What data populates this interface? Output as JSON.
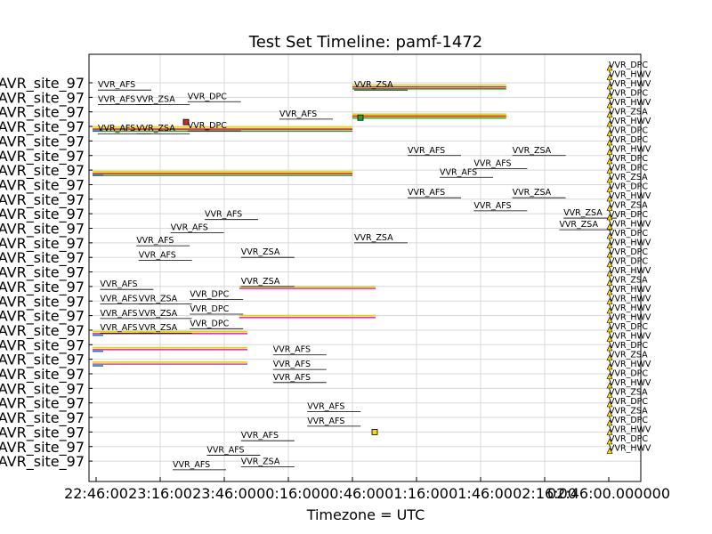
{
  "chart_data": {
    "type": "timeline",
    "title": "Test Set Timeline: pamf-1472",
    "xlabel": "Timezone = UTC",
    "x_tick_labels": [
      "22:46:00",
      "23:16:00",
      "23:46:00",
      "00:16:00",
      "00:46:00",
      "01:16:00",
      "01:46:00",
      "02:16:00",
      "02:46:00"
    ],
    "x_tick_label_suffix": ".000000",
    "y_tick_label": "AVR_site_97",
    "row_count": 27,
    "grid": true,
    "series_colors": {
      "red": "#d62728",
      "green": "#2ca02c",
      "yellow": "#e6d800",
      "magenta": "#d63ad6",
      "blue": "#1f77b4",
      "marker_yellow": "#ffd700"
    },
    "annotations": [
      {
        "text": "VVR_AFS",
        "x_min": 0,
        "y_row": 0.5
      },
      {
        "text": "VVR_ZSA",
        "x_min": 120,
        "y_row": 0.5
      },
      {
        "text": "VVR_AFS",
        "x_min": 0,
        "y_row": 1.5
      },
      {
        "text": "VVR_ZSA",
        "x_min": 18,
        "y_row": 1.5
      },
      {
        "text": "VVR_DPC",
        "x_min": 42,
        "y_row": 1.3
      },
      {
        "text": "VVR_AFS",
        "x_min": 85,
        "y_row": 2.5
      },
      {
        "text": "VVR_AFS",
        "x_min": 0,
        "y_row": 3.5
      },
      {
        "text": "VVR_ZSA",
        "x_min": 18,
        "y_row": 3.5
      },
      {
        "text": "VVR_DPC",
        "x_min": 42,
        "y_row": 3.3
      },
      {
        "text": "VVR_AFS",
        "x_min": 145,
        "y_row": 5.0
      },
      {
        "text": "VVR_ZSA",
        "x_min": 194,
        "y_row": 5.0
      },
      {
        "text": "VVR_AFS",
        "x_min": 176,
        "y_row": 5.9
      },
      {
        "text": "VVR_AFS",
        "x_min": 160,
        "y_row": 6.5
      },
      {
        "text": "VVR_AFS",
        "x_min": 145,
        "y_row": 7.9
      },
      {
        "text": "VVR_ZSA",
        "x_min": 194,
        "y_row": 7.9
      },
      {
        "text": "VVR_AFS",
        "x_min": 176,
        "y_row": 8.8
      },
      {
        "text": "VVR_ZSA",
        "x_min": 218,
        "y_row": 9.3
      },
      {
        "text": "VVR_ZSA",
        "x_min": 216,
        "y_row": 10.1
      },
      {
        "text": "VVR_AFS",
        "x_min": 50,
        "y_row": 9.4
      },
      {
        "text": "VVR_AFS",
        "x_min": 34,
        "y_row": 10.3
      },
      {
        "text": "VVR_ZSA",
        "x_min": 120,
        "y_row": 11.0
      },
      {
        "text": "VVR_AFS",
        "x_min": 18,
        "y_row": 11.2
      },
      {
        "text": "VVR_ZSA",
        "x_min": 67,
        "y_row": 12.0
      },
      {
        "text": "VVR_AFS",
        "x_min": 19,
        "y_row": 12.2
      },
      {
        "text": "VVR_ZSA",
        "x_min": 67,
        "y_row": 14.0
      },
      {
        "text": "VVR_AFS",
        "x_min": 1,
        "y_row": 14.2
      },
      {
        "text": "VVR_AFS",
        "x_min": 1,
        "y_row": 15.2
      },
      {
        "text": "VVR_ZSA",
        "x_min": 19,
        "y_row": 15.2
      },
      {
        "text": "VVR_DPC",
        "x_min": 43,
        "y_row": 14.9
      },
      {
        "text": "VVR_AFS",
        "x_min": 1,
        "y_row": 16.2
      },
      {
        "text": "VVR_ZSA",
        "x_min": 19,
        "y_row": 16.2
      },
      {
        "text": "VVR_DPC",
        "x_min": 43,
        "y_row": 15.9
      },
      {
        "text": "VVR_AFS",
        "x_min": 1,
        "y_row": 17.2
      },
      {
        "text": "VVR_ZSA",
        "x_min": 19,
        "y_row": 17.2
      },
      {
        "text": "VVR_DPC",
        "x_min": 43,
        "y_row": 16.9
      },
      {
        "text": "VVR_AFS",
        "x_min": 82,
        "y_row": 18.7
      },
      {
        "text": "VVR_AFS",
        "x_min": 82,
        "y_row": 19.7
      },
      {
        "text": "VVR_AFS",
        "x_min": 82,
        "y_row": 20.6
      },
      {
        "text": "VVR_AFS",
        "x_min": 98,
        "y_row": 22.6
      },
      {
        "text": "VVR_AFS",
        "x_min": 98,
        "y_row": 23.6
      },
      {
        "text": "VVR_AFS",
        "x_min": 67,
        "y_row": 24.6
      },
      {
        "text": "VVR_AFS",
        "x_min": 51,
        "y_row": 25.6
      },
      {
        "text": "VVR_ZSA",
        "x_min": 67,
        "y_row": 26.4
      },
      {
        "text": "VVR_AFS",
        "x_min": 35,
        "y_row": 26.6
      }
    ],
    "right_edge_labels": [
      "VVR_DPC",
      "VVR_HWV",
      "VVR_HWV",
      "VVR_DPC",
      "VVR_HWV",
      "VVR_ZSA",
      "VVR_HWV",
      "VVR_DPC",
      "VVR_DPC",
      "VVR_HWV",
      "VVR_DPC",
      "VVR_DPC",
      "VVR_ZSA",
      "VVR_DPC",
      "VVR_HWV",
      "VVR_ZSA",
      "VVR_DPC",
      "VVR_HWV",
      "VVR_DPC",
      "VVR_HWV",
      "VVR_DPC",
      "VVR_DPC",
      "VVR_HWV",
      "VVR_ZSA",
      "VVR_HWV",
      "VVR_HWV",
      "VVR_HWV",
      "VVR_HWV",
      "VVR_DPC",
      "VVR_HWV",
      "VVR_DPC",
      "VVR_ZSA",
      "VVR_HWV",
      "VVR_DPC",
      "VVR_HWV",
      "VVR_ZSA",
      "VVR_DPC",
      "VVR_ZSA",
      "VVR_DPC",
      "VVR_HWV",
      "VVR_DPC",
      "VVR_HWV"
    ]
  }
}
